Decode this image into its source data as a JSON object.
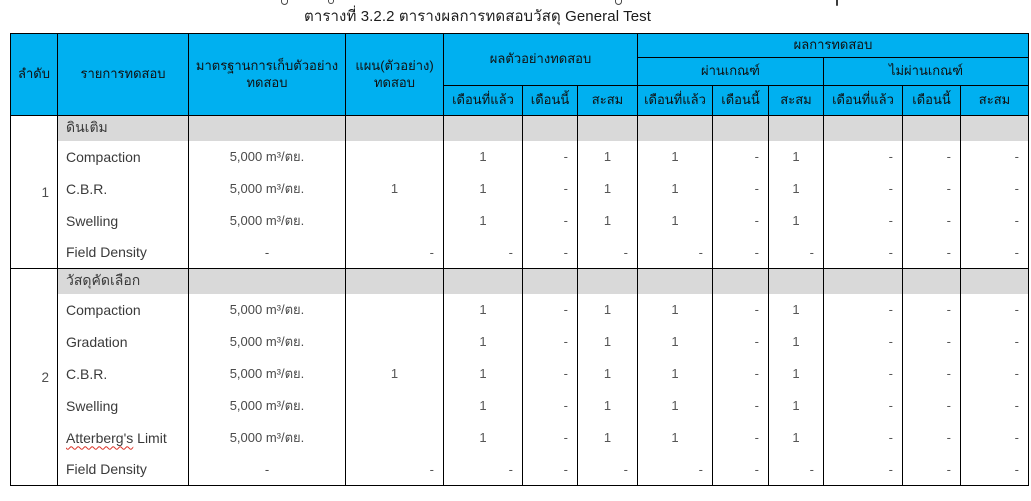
{
  "title": "ตารางที่ 3.2.2 ตารางผลการทดสอบวัสดุ General Test",
  "colors": {
    "header_bg": "#00B0F0",
    "band_bg": "#D9D9D9",
    "border": "#000000",
    "spellcheck_underline": "#D93025"
  },
  "header": {
    "no": "ลำดับ",
    "test_item": "รายการทดสอบ",
    "sampling_standard": "มาตรฐานการเก็บตัวอย่าง\nทดสอบ",
    "plan": "แผน(ตัวอย่าง)\nทดสอบ",
    "sample_results": "ผลตัวอย่างทดสอบ",
    "test_results": "ผลการทดสอบ",
    "pass": "ผ่านเกณฑ์",
    "fail": "ไม่ผ่านเกณฑ์",
    "last_month": "เดือนที่แล้ว",
    "this_month": "เดือนนี้",
    "cumulative": "สะสม"
  },
  "sections": [
    {
      "no": "1",
      "material": "ดินเติม",
      "plan": "1",
      "rows": [
        {
          "label": "Compaction",
          "standard": "5,000 m³/ตย.",
          "sample": [
            "1",
            "-",
            "1"
          ],
          "pass": [
            "1",
            "-",
            "1"
          ],
          "fail": [
            "-",
            "-",
            "-"
          ]
        },
        {
          "label": "C.B.R.",
          "standard": "5,000 m³/ตย.",
          "sample": [
            "1",
            "-",
            "1"
          ],
          "pass": [
            "1",
            "-",
            "1"
          ],
          "fail": [
            "-",
            "-",
            "-"
          ]
        },
        {
          "label": "Swelling",
          "standard": "5,000 m³/ตย.",
          "sample": [
            "1",
            "-",
            "1"
          ],
          "pass": [
            "1",
            "-",
            "1"
          ],
          "fail": [
            "-",
            "-",
            "-"
          ]
        },
        {
          "label": "Field Density",
          "standard": "-",
          "plan": "-",
          "sample": [
            "-",
            "-",
            "-"
          ],
          "pass": [
            "-",
            "-",
            "-"
          ],
          "fail": [
            "-",
            "-",
            "-"
          ]
        }
      ]
    },
    {
      "no": "2",
      "material": "วัสดุคัดเลือก",
      "plan": "1",
      "rows": [
        {
          "label": "Compaction",
          "standard": "5,000 m³/ตย.",
          "sample": [
            "1",
            "-",
            "1"
          ],
          "pass": [
            "1",
            "-",
            "1"
          ],
          "fail": [
            "-",
            "-",
            "-"
          ]
        },
        {
          "label": "Gradation",
          "standard": "5,000 m³/ตย.",
          "sample": [
            "1",
            "-",
            "1"
          ],
          "pass": [
            "1",
            "-",
            "1"
          ],
          "fail": [
            "-",
            "-",
            "-"
          ]
        },
        {
          "label": "C.B.R.",
          "standard": "5,000 m³/ตย.",
          "sample": [
            "1",
            "-",
            "1"
          ],
          "pass": [
            "1",
            "-",
            "1"
          ],
          "fail": [
            "-",
            "-",
            "-"
          ]
        },
        {
          "label": "Swelling",
          "standard": "5,000 m³/ตย.",
          "sample": [
            "1",
            "-",
            "1"
          ],
          "pass": [
            "1",
            "-",
            "1"
          ],
          "fail": [
            "-",
            "-",
            "-"
          ]
        },
        {
          "label": "Atterberg's Limit",
          "squiggle": "Atterberg's",
          "standard": "5,000 m³/ตย.",
          "sample": [
            "1",
            "-",
            "1"
          ],
          "pass": [
            "1",
            "-",
            "1"
          ],
          "fail": [
            "-",
            "-",
            "-"
          ]
        },
        {
          "label": "Field Density",
          "standard": "-",
          "plan": "-",
          "sample": [
            "-",
            "-",
            "-"
          ],
          "pass": [
            "-",
            "-",
            "-"
          ],
          "fail": [
            "-",
            "-",
            "-"
          ]
        }
      ]
    }
  ]
}
